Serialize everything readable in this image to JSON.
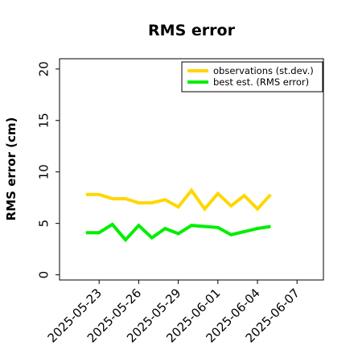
{
  "chart_data": {
    "type": "line",
    "title": "RMS error",
    "xlabel": "",
    "ylabel": "RMS error (cm)",
    "x": [
      "2025-05-22",
      "2025-05-23",
      "2025-05-24",
      "2025-05-25",
      "2025-05-26",
      "2025-05-27",
      "2025-05-28",
      "2025-05-29",
      "2025-05-30",
      "2025-05-31",
      "2025-06-01",
      "2025-06-02",
      "2025-06-03",
      "2025-06-04",
      "2025-06-05"
    ],
    "series": [
      {
        "name": "observations (st.dev.)",
        "color": "#ffd700",
        "values": [
          7.8,
          7.8,
          7.4,
          7.4,
          7.0,
          7.0,
          7.3,
          6.6,
          8.2,
          6.4,
          7.9,
          6.7,
          7.7,
          6.4,
          7.8
        ]
      },
      {
        "name": "best est. (RMS error)",
        "color": "#00ee00",
        "values": [
          4.1,
          4.1,
          4.9,
          3.4,
          4.8,
          3.6,
          4.5,
          4.0,
          4.8,
          4.7,
          4.6,
          3.9,
          4.2,
          4.5,
          4.7
        ]
      }
    ],
    "xlim": [
      "2025-05-20",
      "2025-06-09"
    ],
    "ylim": [
      -0.5,
      21
    ],
    "yticks": [
      0,
      5,
      10,
      15,
      20
    ],
    "xticks": [
      {
        "label": "2025-05-23",
        "color": "#000000"
      },
      {
        "label": "2025-05-26",
        "color": "#000000"
      },
      {
        "label": "2025-05-29",
        "color": "#228b22"
      },
      {
        "label": "2025-06-01",
        "color": "#000000"
      },
      {
        "label": "2025-06-04",
        "color": "#000000"
      },
      {
        "label": "2025-06-07",
        "color": "#000000"
      }
    ],
    "grid": false,
    "legend": "top-right"
  }
}
